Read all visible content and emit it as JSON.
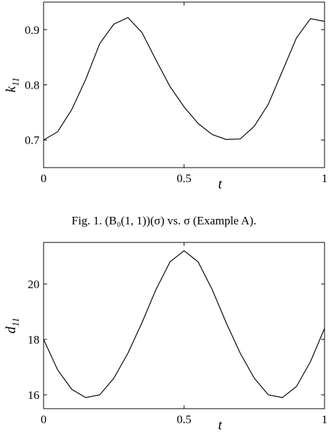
{
  "chart_data": [
    {
      "type": "line",
      "xlabel": "t",
      "ylabel": "k",
      "ylabel_subscript": "11",
      "caption": "Fig. 1.  (B₀(1, 1))(σ) vs. σ (Example A).",
      "x": [
        0,
        0.05,
        0.1,
        0.15,
        0.2,
        0.25,
        0.3,
        0.35,
        0.4,
        0.45,
        0.5,
        0.55,
        0.6,
        0.65,
        0.7,
        0.75,
        0.8,
        0.85,
        0.9,
        0.95,
        1.0
      ],
      "series": [
        {
          "color": "#000000",
          "values": [
            0.7,
            0.715,
            0.755,
            0.81,
            0.875,
            0.91,
            0.922,
            0.895,
            0.845,
            0.797,
            0.76,
            0.73,
            0.71,
            0.701,
            0.702,
            0.725,
            0.765,
            0.825,
            0.885,
            0.92,
            0.915
          ]
        }
      ],
      "xlim": [
        0,
        1
      ],
      "ylim": [
        0.65,
        0.95
      ],
      "xticks": [
        0,
        0.5,
        1
      ],
      "yticks": [
        0.7,
        0.8,
        0.9
      ]
    },
    {
      "type": "line",
      "xlabel": "t",
      "ylabel": "d",
      "ylabel_subscript": "11",
      "x": [
        0,
        0.05,
        0.1,
        0.15,
        0.2,
        0.25,
        0.3,
        0.35,
        0.4,
        0.45,
        0.5,
        0.55,
        0.6,
        0.65,
        0.7,
        0.75,
        0.8,
        0.85,
        0.9,
        0.95,
        1.0
      ],
      "series": [
        {
          "color": "#000000",
          "values": [
            18.0,
            16.9,
            16.2,
            15.9,
            16.0,
            16.6,
            17.5,
            18.6,
            19.8,
            20.8,
            21.2,
            20.8,
            19.8,
            18.6,
            17.5,
            16.6,
            16.0,
            15.9,
            16.3,
            17.2,
            18.4
          ]
        }
      ],
      "xlim": [
        0,
        1
      ],
      "ylim": [
        15.5,
        21.5
      ],
      "xticks": [
        0,
        0.5,
        1
      ],
      "yticks": [
        16,
        18,
        20
      ]
    }
  ]
}
